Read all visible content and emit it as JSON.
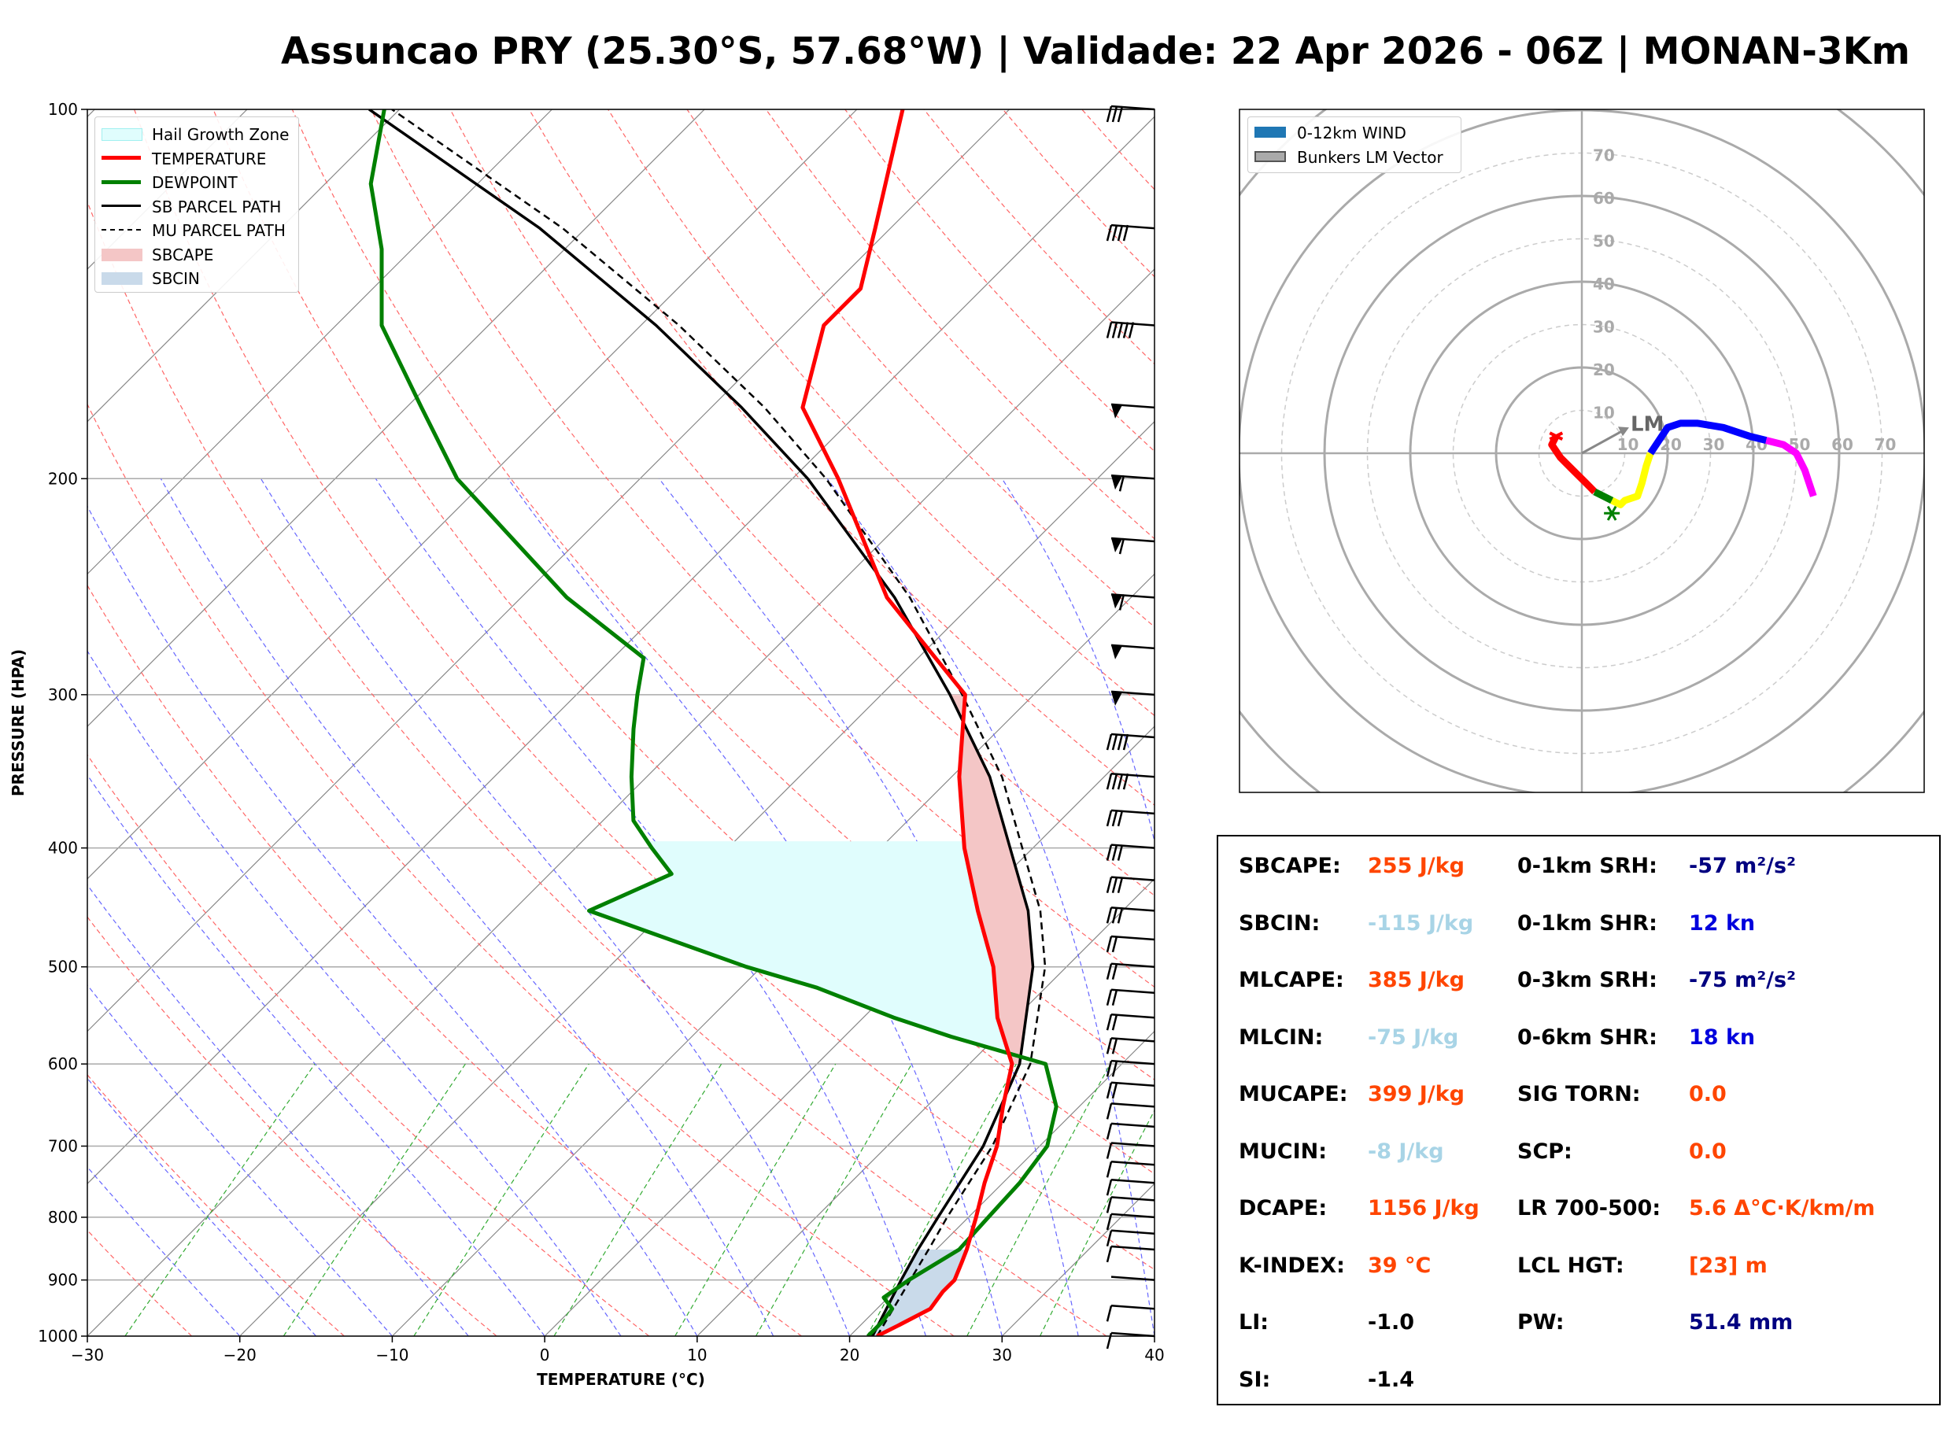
{
  "title": "Assuncao PRY (25.30°S, 57.68°W) | Validade: 22 Apr 2026 - 06Z | MONAN-3Km",
  "colors": {
    "temperature": "#ff0000",
    "dewpoint": "#008000",
    "parcel": "#000000",
    "sbcape": "#f4c6c6",
    "sbcin": "#c9daea",
    "hail": "#e0fdfd",
    "dry_adiabat": "#ff6666",
    "moist_adiabat": "#6666ff",
    "mixing_ratio": "#33aa33",
    "param_red": "#ff4500",
    "param_lightblue": "#a8d4e6",
    "param_blue": "#0000dd",
    "param_navy": "#000080"
  },
  "chart_data": [
    {
      "type": "line",
      "name": "skew-t",
      "xlabel": "TEMPERATURE (°C)",
      "ylabel": "PRESSURE (HPA)",
      "xlim": [
        -30,
        40
      ],
      "ylim": [
        1000,
        100
      ],
      "y_scale": "log",
      "x_ticks": [
        "−30",
        "−20",
        "−10",
        "0",
        "10",
        "20",
        "30",
        "40"
      ],
      "y_ticks": [
        "100",
        "200",
        "300",
        "400",
        "500",
        "600",
        "700",
        "800",
        "900",
        "1000"
      ],
      "grid": true,
      "legend_position": "upper-left",
      "legend": [
        "Hail Growth Zone",
        "TEMPERATURE",
        "DEWPOINT",
        "SB PARCEL PATH",
        "MU PARCEL PATH",
        "SBCAPE",
        "SBCIN"
      ],
      "series": [
        {
          "name": "TEMPERATURE",
          "points": [
            [
              1000,
              21.8
            ],
            [
              980,
              22.5
            ],
            [
              950,
              23.5
            ],
            [
              920,
              23.2
            ],
            [
              900,
              23.2
            ],
            [
              870,
              22.5
            ],
            [
              850,
              22.0
            ],
            [
              800,
              20.5
            ],
            [
              750,
              18.8
            ],
            [
              700,
              17.2
            ],
            [
              650,
              15.0
            ],
            [
              600,
              12.8
            ],
            [
              550,
              8.8
            ],
            [
              500,
              5.2
            ],
            [
              450,
              0.5
            ],
            [
              400,
              -4.5
            ],
            [
              350,
              -9.5
            ],
            [
              300,
              -14.5
            ],
            [
              275,
              -20.0
            ],
            [
              250,
              -26.0
            ],
            [
              200,
              -37.0
            ],
            [
              175,
              -44.0
            ],
            [
              150,
              -48.0
            ],
            [
              140,
              -48.0
            ],
            [
              125,
              -51.0
            ],
            [
              100,
              -57.0
            ]
          ]
        },
        {
          "name": "DEWPOINT",
          "points": [
            [
              1000,
              21.2
            ],
            [
              975,
              21.2
            ],
            [
              950,
              21.0
            ],
            [
              930,
              19.7
            ],
            [
              900,
              20.2
            ],
            [
              850,
              21.5
            ],
            [
              800,
              21.3
            ],
            [
              750,
              21.1
            ],
            [
              700,
              20.5
            ],
            [
              650,
              18.5
            ],
            [
              600,
              15.0
            ],
            [
              570,
              7.0
            ],
            [
              550,
              2.0
            ],
            [
              520,
              -5.0
            ],
            [
              500,
              -11.0
            ],
            [
              450,
              -25.0
            ],
            [
              420,
              -22.0
            ],
            [
              400,
              -25.0
            ],
            [
              380,
              -28.0
            ],
            [
              350,
              -31.0
            ],
            [
              320,
              -34.0
            ],
            [
              300,
              -36.0
            ],
            [
              280,
              -38.0
            ],
            [
              250,
              -47.0
            ],
            [
              200,
              -62.0
            ],
            [
              175,
              -69.0
            ],
            [
              150,
              -77.0
            ],
            [
              130,
              -82.0
            ],
            [
              115,
              -87.0
            ],
            [
              100,
              -91.0
            ]
          ]
        },
        {
          "name": "SB PARCEL PATH",
          "points": [
            [
              1000,
              21.5
            ],
            [
              900,
              19.7
            ],
            [
              850,
              18.8
            ],
            [
              800,
              18.0
            ],
            [
              700,
              16.3
            ],
            [
              600,
              13.3
            ],
            [
              500,
              7.8
            ],
            [
              450,
              3.8
            ],
            [
              400,
              -1.5
            ],
            [
              350,
              -7.5
            ],
            [
              300,
              -15.5
            ],
            [
              250,
              -25.5
            ],
            [
              200,
              -39.0
            ],
            [
              175,
              -48.0
            ],
            [
              150,
              -59.0
            ],
            [
              125,
              -73.0
            ],
            [
              100,
              -92.0
            ]
          ]
        },
        {
          "name": "MU PARCEL PATH",
          "points": [
            [
              1000,
              21.8
            ],
            [
              900,
              20.3
            ],
            [
              850,
              19.5
            ],
            [
              800,
              18.6
            ],
            [
              700,
              16.9
            ],
            [
              600,
              14.0
            ],
            [
              500,
              8.6
            ],
            [
              450,
              4.6
            ],
            [
              400,
              -0.7
            ],
            [
              350,
              -6.7
            ],
            [
              300,
              -14.7
            ],
            [
              250,
              -24.5
            ],
            [
              200,
              -37.8
            ],
            [
              175,
              -46.5
            ],
            [
              150,
              -57.5
            ],
            [
              125,
              -71.5
            ],
            [
              100,
              -90.5
            ]
          ]
        }
      ],
      "wind_barbs": [
        {
          "p": 100,
          "flag": 0,
          "long": 3
        },
        {
          "p": 125,
          "flag": 0,
          "long": 4
        },
        {
          "p": 150,
          "flag": 0,
          "long": 5
        },
        {
          "p": 175,
          "flag": 1,
          "long": 0
        },
        {
          "p": 200,
          "flag": 1,
          "long": 1
        },
        {
          "p": 225,
          "flag": 1,
          "long": 1
        },
        {
          "p": 250,
          "flag": 1,
          "long": 1
        },
        {
          "p": 275,
          "flag": 1,
          "long": 0
        },
        {
          "p": 300,
          "flag": 1,
          "long": 0
        },
        {
          "p": 325,
          "flag": 0,
          "long": 4
        },
        {
          "p": 350,
          "flag": 0,
          "long": 4
        },
        {
          "p": 375,
          "flag": 0,
          "long": 3
        },
        {
          "p": 400,
          "flag": 0,
          "long": 3
        },
        {
          "p": 425,
          "flag": 0,
          "long": 3
        },
        {
          "p": 450,
          "flag": 0,
          "long": 3
        },
        {
          "p": 475,
          "flag": 0,
          "long": 2
        },
        {
          "p": 500,
          "flag": 0,
          "long": 2
        },
        {
          "p": 525,
          "flag": 0,
          "long": 2
        },
        {
          "p": 550,
          "flag": 0,
          "long": 2
        },
        {
          "p": 575,
          "flag": 0,
          "long": 2
        },
        {
          "p": 600,
          "flag": 0,
          "long": 2
        },
        {
          "p": 625,
          "flag": 0,
          "long": 2
        },
        {
          "p": 650,
          "flag": 0,
          "long": 1
        },
        {
          "p": 675,
          "flag": 0,
          "long": 1
        },
        {
          "p": 700,
          "flag": 0,
          "long": 1
        },
        {
          "p": 725,
          "flag": 0,
          "long": 1
        },
        {
          "p": 750,
          "flag": 0,
          "long": 1
        },
        {
          "p": 775,
          "flag": 0,
          "long": 1
        },
        {
          "p": 800,
          "flag": 0,
          "long": 1
        },
        {
          "p": 825,
          "flag": 0,
          "long": 1
        },
        {
          "p": 850,
          "flag": 0,
          "long": 1
        },
        {
          "p": 900,
          "flag": 0,
          "long": 0
        },
        {
          "p": 950,
          "flag": 0,
          "long": 1
        },
        {
          "p": 1000,
          "flag": 0,
          "long": 1
        }
      ]
    },
    {
      "type": "line",
      "name": "hodograph",
      "legend": [
        "0-12km WIND",
        "Bunkers LM Vector"
      ],
      "legend_position": "upper-left",
      "ring_labels": [
        "10",
        "20",
        "30",
        "40",
        "50",
        "60",
        "70"
      ],
      "lm_label": "LM",
      "lm_vector": [
        11,
        6
      ],
      "segments": [
        {
          "color": "#ff0000",
          "points": [
            [
              -6,
              4
            ],
            [
              -7,
              2
            ],
            [
              -5,
              -1
            ],
            [
              -2,
              -4
            ],
            [
              1,
              -7
            ],
            [
              3,
              -9
            ]
          ]
        },
        {
          "color": "#008000",
          "points": [
            [
              3,
              -9
            ],
            [
              5,
              -10
            ],
            [
              7,
              -11
            ]
          ]
        },
        {
          "color": "#ffff00",
          "points": [
            [
              7,
              -11
            ],
            [
              9,
              -12
            ],
            [
              10,
              -11
            ],
            [
              13,
              -10
            ],
            [
              14,
              -7
            ],
            [
              15,
              -3
            ],
            [
              16,
              0
            ]
          ]
        },
        {
          "color": "#0000ff",
          "points": [
            [
              16,
              0
            ],
            [
              18,
              3
            ],
            [
              20,
              6
            ],
            [
              23,
              7
            ],
            [
              27,
              7
            ],
            [
              33,
              6
            ],
            [
              39,
              4
            ],
            [
              43,
              3
            ]
          ]
        },
        {
          "color": "#ff00ff",
          "points": [
            [
              43,
              3
            ],
            [
              47,
              2
            ],
            [
              50,
              0
            ],
            [
              52,
              -4
            ],
            [
              54,
              -10
            ]
          ]
        }
      ],
      "storm_marker": [
        7,
        -14
      ]
    }
  ],
  "params": {
    "left": [
      {
        "label": "SBCAPE:",
        "value": "255 J/kg",
        "color": "red"
      },
      {
        "label": "SBCIN:",
        "value": "-115 J/kg",
        "color": "lightblue"
      },
      {
        "label": "MLCAPE:",
        "value": "385 J/kg",
        "color": "red"
      },
      {
        "label": "MLCIN:",
        "value": "-75 J/kg",
        "color": "lightblue"
      },
      {
        "label": "MUCAPE:",
        "value": "399 J/kg",
        "color": "red"
      },
      {
        "label": "MUCIN:",
        "value": "-8 J/kg",
        "color": "lightblue"
      },
      {
        "label": "DCAPE:",
        "value": "1156 J/kg",
        "color": "red"
      },
      {
        "label": "K-INDEX:",
        "value": "39 °C",
        "color": "red"
      },
      {
        "label": "LI:",
        "value": "-1.0",
        "color": "black"
      },
      {
        "label": "SI:",
        "value": "-1.4",
        "color": "black"
      }
    ],
    "right": [
      {
        "label": "0-1km SRH:",
        "value": "-57 m²/s²",
        "color": "navy"
      },
      {
        "label": "0-1km SHR:",
        "value": "12 kn",
        "color": "blue"
      },
      {
        "label": "0-3km SRH:",
        "value": "-75 m²/s²",
        "color": "navy"
      },
      {
        "label": "0-6km SHR:",
        "value": "18 kn",
        "color": "blue"
      },
      {
        "label": "SIG TORN:",
        "value": "0.0",
        "color": "red"
      },
      {
        "label": "SCP:",
        "value": "0.0",
        "color": "red"
      },
      {
        "label": "LR 700-500:",
        "value": "5.6 Δ°C·K/km/m",
        "color": "red"
      },
      {
        "label": "LCL HGT:",
        "value": "[23] m",
        "color": "red"
      },
      {
        "label": "PW:",
        "value": "51.4 mm",
        "color": "navy"
      }
    ]
  }
}
